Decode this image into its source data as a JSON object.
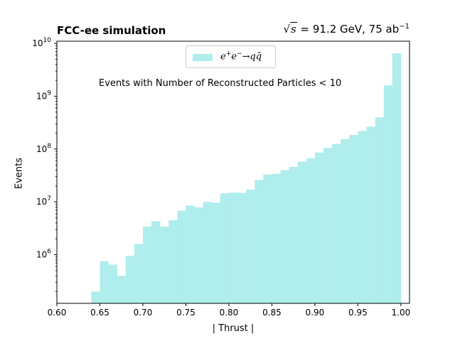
{
  "header": {
    "title_left": "FCC-ee simulation",
    "energy_label": "s",
    "energy_value": " = 91.2 GeV, 75 ab",
    "lumi_exponent": "−1"
  },
  "annotation": "Events with Number of Reconstructed Particles < 10",
  "legend": {
    "label_base": "e",
    "label_sup1": "+",
    "label_mid": "e",
    "label_sup2": "−",
    "label_rest": "→qq̄",
    "color": "#b0eded"
  },
  "chart_data": {
    "type": "bar",
    "title": "FCC-ee simulation",
    "xlabel": "| Thrust |",
    "ylabel": "Events",
    "xlim": [
      0.6,
      1.01
    ],
    "ylim": [
      120000,
      11000000000
    ],
    "yscale": "log",
    "grid": false,
    "legend_position": "top-center",
    "bin_width": 0.01,
    "series": [
      {
        "name": "e+e- → qq̄",
        "color": "#b0eded",
        "bin_edges_start": [
          0.64,
          0.65,
          0.66,
          0.67,
          0.68,
          0.69,
          0.7,
          0.71,
          0.72,
          0.73,
          0.74,
          0.75,
          0.76,
          0.77,
          0.78,
          0.79,
          0.8,
          0.81,
          0.82,
          0.83,
          0.84,
          0.85,
          0.86,
          0.87,
          0.88,
          0.89,
          0.9,
          0.91,
          0.92,
          0.93,
          0.94,
          0.95,
          0.96,
          0.97,
          0.98,
          0.99
        ],
        "values": [
          200000,
          750000,
          650000,
          400000,
          950000,
          1600000,
          3400000,
          4300000,
          3400000,
          4500000,
          6800000,
          8500000,
          7900000,
          10000000,
          9600000,
          14500000,
          15000000,
          14800000,
          17000000,
          26000000,
          33000000,
          34000000,
          40000000,
          46000000,
          58000000,
          67000000,
          86000000,
          105000000,
          125000000,
          155000000,
          185000000,
          220000000,
          265000000,
          400000000,
          1600000000,
          6500000000
        ]
      }
    ],
    "xticks": [
      "0.60",
      "0.65",
      "0.70",
      "0.75",
      "0.80",
      "0.85",
      "0.90",
      "0.95",
      "1.00"
    ],
    "yticks": [
      "10^6",
      "10^7",
      "10^8",
      "10^9",
      "10^10"
    ]
  }
}
